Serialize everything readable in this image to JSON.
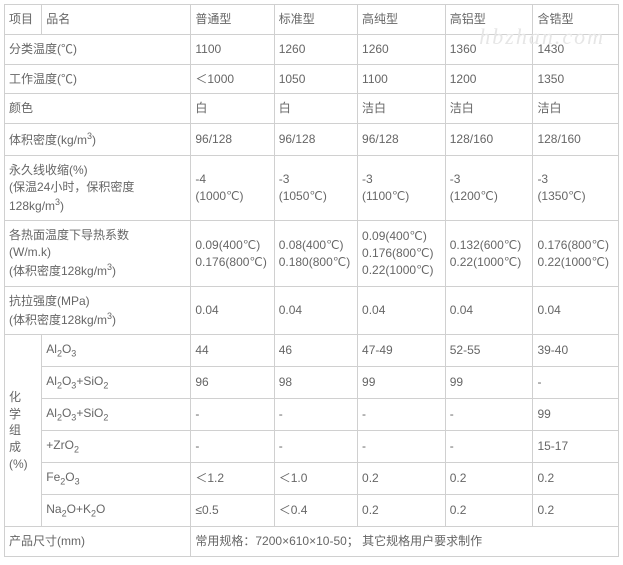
{
  "watermark": "hbzhan.com",
  "table": {
    "colgroup": [
      "col-proj",
      "col-name",
      "col-pt",
      "col-bz",
      "col-gc",
      "col-gl",
      "col-hg"
    ],
    "rows": [
      {
        "cells": [
          {
            "v": "项目"
          },
          {
            "v": "品名"
          },
          {
            "v": "普通型"
          },
          {
            "v": "标准型"
          },
          {
            "v": "高纯型"
          },
          {
            "v": "高铝型"
          },
          {
            "v": "含锆型"
          }
        ]
      },
      {
        "cells": [
          {
            "v": "分类温度(℃)",
            "colspan": 2
          },
          {
            "v": "1100"
          },
          {
            "v": "1260"
          },
          {
            "v": "1260"
          },
          {
            "v": "1360"
          },
          {
            "v": "1430"
          }
        ]
      },
      {
        "cells": [
          {
            "v": "工作温度(℃)",
            "colspan": 2
          },
          {
            "v": "＜1000"
          },
          {
            "v": "1050"
          },
          {
            "v": "1100"
          },
          {
            "v": "1200"
          },
          {
            "v": "1350"
          }
        ]
      },
      {
        "cells": [
          {
            "v": "颜色",
            "colspan": 2
          },
          {
            "v": "白"
          },
          {
            "v": "白"
          },
          {
            "v": "洁白"
          },
          {
            "v": "洁白"
          },
          {
            "v": "洁白"
          }
        ]
      },
      {
        "cells": [
          {
            "html": "体积密度(kg/m<sup>3</sup>)",
            "colspan": 2
          },
          {
            "v": "96/128"
          },
          {
            "v": "96/128"
          },
          {
            "v": "96/128"
          },
          {
            "v": "128/160"
          },
          {
            "v": "128/160"
          }
        ]
      },
      {
        "cells": [
          {
            "html": "永久线收缩(%)<br>(保温24小时，保积密度128kg/m<sup>3</sup>)",
            "colspan": 2
          },
          {
            "html": "-4<br>(1000℃)"
          },
          {
            "html": "-3<br>(1050℃)"
          },
          {
            "html": "-3<br>(1100℃)"
          },
          {
            "html": "-3<br>(1200℃)"
          },
          {
            "html": "-3<br>(1350℃)"
          }
        ]
      },
      {
        "cells": [
          {
            "html": "各热面温度下导热系数<br>(W/m.k)<br>(体积密度128kg/m<sup>3</sup>)",
            "colspan": 2
          },
          {
            "html": "0.09(400℃)<br>0.176(800℃)"
          },
          {
            "html": "0.08(400℃)<br>0.180(800℃)"
          },
          {
            "html": "0.09(400℃)<br>0.176(800℃)<br>0.22(1000℃)"
          },
          {
            "html": "0.132(600℃)<br>0.22(1000℃)"
          },
          {
            "html": "0.176(800℃)<br>0.22(1000℃)"
          }
        ]
      },
      {
        "cells": [
          {
            "html": "抗拉强度(MPa)<br>(体积密度128kg/m<sup>3</sup>)",
            "colspan": 2
          },
          {
            "v": "0.04"
          },
          {
            "v": "0.04"
          },
          {
            "v": "0.04"
          },
          {
            "v": "0.04"
          },
          {
            "v": "0.04"
          }
        ]
      },
      {
        "cells": [
          {
            "html": "化<br>学<br>组<br>成<br>(%)",
            "rowspan": 6
          },
          {
            "html": "Al<sub>2</sub>O<sub>3</sub>"
          },
          {
            "v": "44"
          },
          {
            "v": "46"
          },
          {
            "v": "47-49"
          },
          {
            "v": "52-55"
          },
          {
            "v": "39-40"
          }
        ]
      },
      {
        "cells": [
          {
            "html": "Al<sub>2</sub>O<sub>3</sub>+SiO<sub>2</sub>"
          },
          {
            "v": "96"
          },
          {
            "v": "98"
          },
          {
            "v": "99"
          },
          {
            "v": "99"
          },
          {
            "v": "-"
          }
        ]
      },
      {
        "cells": [
          {
            "html": "Al<sub>2</sub>O<sub>3</sub>+SiO<sub>2</sub>"
          },
          {
            "v": "-"
          },
          {
            "v": "-"
          },
          {
            "v": "-"
          },
          {
            "v": "-"
          },
          {
            "v": "99"
          }
        ]
      },
      {
        "cells": [
          {
            "html": "+ZrO<sub>2</sub>"
          },
          {
            "v": "-"
          },
          {
            "v": "-"
          },
          {
            "v": "-"
          },
          {
            "v": "-"
          },
          {
            "v": "15-17"
          }
        ]
      },
      {
        "cells": [
          {
            "html": "Fe<sub>2</sub>O<sub>3</sub>"
          },
          {
            "v": "＜1.2"
          },
          {
            "v": "＜1.0"
          },
          {
            "v": "0.2"
          },
          {
            "v": "0.2"
          },
          {
            "v": "0.2"
          }
        ]
      },
      {
        "cells": [
          {
            "html": "Na<sub>2</sub>O+K<sub>2</sub>O"
          },
          {
            "v": "≤0.5"
          },
          {
            "v": "＜0.4"
          },
          {
            "v": "0.2"
          },
          {
            "v": "0.2"
          },
          {
            "v": "0.2"
          }
        ]
      },
      {
        "cells": [
          {
            "v": "产品尺寸(mm)",
            "colspan": 2
          },
          {
            "v": "常用规格：7200×610×10-50； 其它规格用户要求制作",
            "colspan": 5
          }
        ]
      }
    ]
  }
}
